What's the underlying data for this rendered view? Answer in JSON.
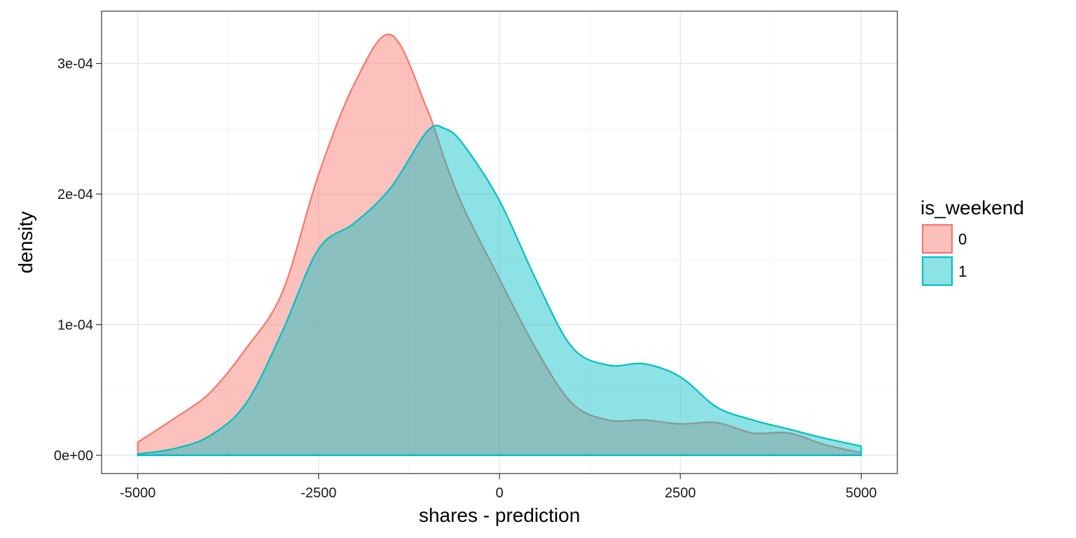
{
  "chart_data": {
    "type": "area",
    "xlabel": "shares - prediction",
    "ylabel": "density",
    "xlim": [
      -5500,
      5500
    ],
    "ylim": [
      -1.4e-05,
      0.00034
    ],
    "x_ticks": [
      -5000,
      -2500,
      0,
      2500,
      5000
    ],
    "x_tick_labels": [
      "-5000",
      "-2500",
      "0",
      "2500",
      "5000"
    ],
    "y_ticks": [
      0,
      0.0001,
      0.0002,
      0.0003
    ],
    "y_tick_labels": [
      "0e+00",
      "1e-04",
      "2e-04",
      "3e-04"
    ],
    "grid": true,
    "legend": {
      "title": "is_weekend",
      "placement": "right"
    },
    "series": [
      {
        "name": "0",
        "fill": "#F8766D",
        "stroke": "#F8766D",
        "x": [
          -5000,
          -4500,
          -4000,
          -3500,
          -3000,
          -2500,
          -2000,
          -1500,
          -1000,
          -750,
          -500,
          0,
          500,
          1000,
          1500,
          2000,
          2500,
          3000,
          3500,
          4000,
          4500,
          5000
        ],
        "y": [
          1e-05,
          2.8e-05,
          4.8e-05,
          8.2e-05,
          0.000125,
          0.000215,
          0.000285,
          0.000322,
          0.000265,
          0.000225,
          0.00019,
          0.000135,
          8.2e-05,
          4e-05,
          2.7e-05,
          2.7e-05,
          2.4e-05,
          2.5e-05,
          1.7e-05,
          1.7e-05,
          8e-06,
          2e-06
        ]
      },
      {
        "name": "1",
        "fill": "#00BFC4",
        "stroke": "#00BFC4",
        "x": [
          -5000,
          -4500,
          -4000,
          -3500,
          -3000,
          -2500,
          -2000,
          -1500,
          -1000,
          -750,
          -500,
          0,
          500,
          1000,
          1500,
          2000,
          2500,
          3000,
          3500,
          4000,
          4500,
          5000
        ],
        "y": [
          1e-06,
          5e-06,
          1.5e-05,
          4e-05,
          9.5e-05,
          0.000158,
          0.000178,
          0.000205,
          0.000248,
          0.00025,
          0.000238,
          0.000195,
          0.000135,
          8.3e-05,
          6.9e-05,
          7e-05,
          6e-05,
          3.7e-05,
          2.7e-05,
          2e-05,
          1.3e-05,
          7e-06
        ]
      }
    ]
  }
}
